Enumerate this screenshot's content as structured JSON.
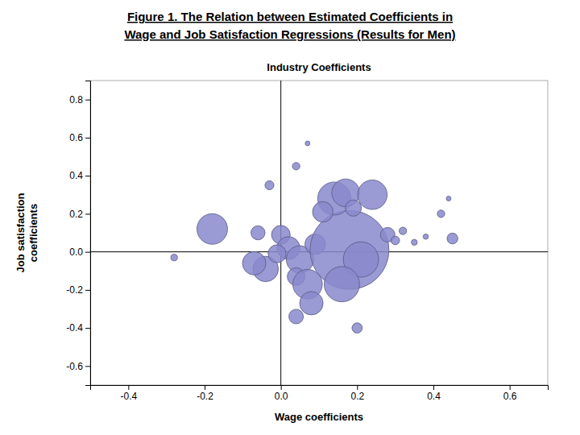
{
  "chart_data": {
    "type": "bubble",
    "title": [
      "Figure 1. The Relation between Estimated Coefficients in",
      "Wage and Job Satisfaction Regressions (Results for Men)"
    ],
    "subtitle": "Industry Coefficients",
    "x_label": "Wage coefficients",
    "y_label": "Job satisfaction\ncoefficients",
    "xlim": [
      -0.5,
      0.7
    ],
    "ylim": [
      -0.7,
      0.9
    ],
    "xticks": [
      -0.4,
      -0.2,
      {
        "value": 0.0,
        "label": "0.0"
      },
      0.2,
      0.4,
      0.6
    ],
    "yticks": [
      -0.6,
      -0.4,
      -0.2,
      {
        "value": 0.0,
        "label": "0.0"
      },
      0.2,
      0.4,
      0.6,
      0.8
    ],
    "color": "#8888cc",
    "x": [
      0.07,
      0.04,
      -0.03,
      -0.18,
      -0.28,
      -0.06,
      0.0,
      0.02,
      0.05,
      0.09,
      0.18,
      0.21,
      0.14,
      0.17,
      0.11,
      0.19,
      0.24,
      0.28,
      0.3,
      0.32,
      0.35,
      0.38,
      0.42,
      0.44,
      0.45,
      0.04,
      0.07,
      0.16,
      0.08,
      0.04,
      0.2,
      -0.04,
      -0.07,
      -0.01
    ],
    "values": [
      0.57,
      0.45,
      0.35,
      0.12,
      -0.03,
      0.1,
      0.09,
      0.02,
      -0.04,
      0.04,
      0.01,
      -0.04,
      0.28,
      0.31,
      0.21,
      0.23,
      0.3,
      0.09,
      0.06,
      0.11,
      0.05,
      0.08,
      0.2,
      0.28,
      0.07,
      -0.13,
      -0.17,
      -0.17,
      -0.27,
      -0.34,
      -0.4,
      -0.09,
      -0.06,
      -0.01
    ],
    "sizes": [
      18,
      45,
      65,
      750,
      35,
      160,
      280,
      420,
      600,
      340,
      5000,
      1000,
      880,
      620,
      340,
      210,
      700,
      170,
      60,
      45,
      28,
      22,
      45,
      18,
      95,
      250,
      700,
      1000,
      440,
      170,
      85,
      520,
      440,
      260
    ]
  }
}
